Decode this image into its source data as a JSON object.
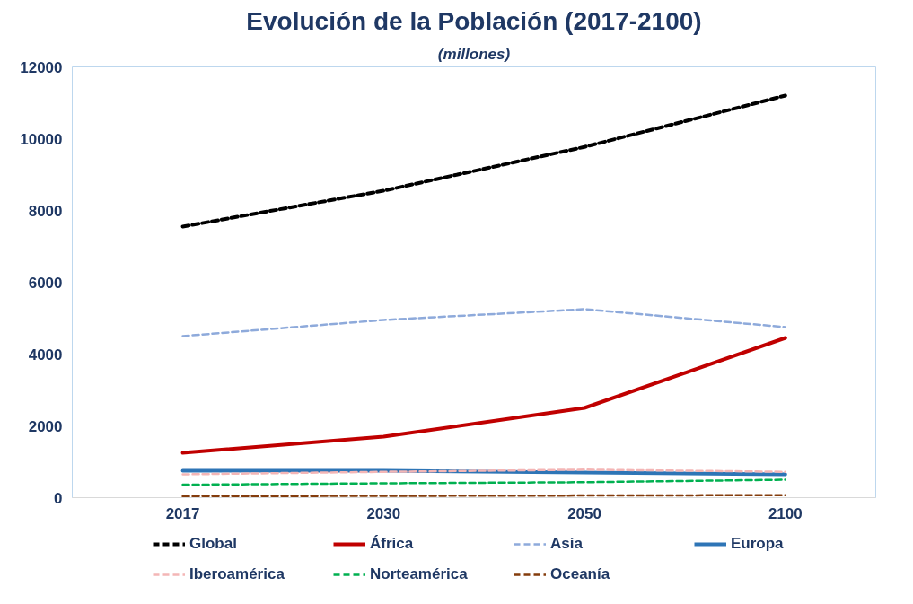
{
  "chart_data": {
    "type": "line",
    "title": "Evolución de la Población (2017-2100)",
    "subtitle": "(millones)",
    "categories": [
      "2017",
      "2030",
      "2050",
      "2100"
    ],
    "ylim": [
      0,
      12000
    ],
    "yticks": [
      0,
      2000,
      4000,
      6000,
      8000,
      10000,
      12000
    ],
    "grid": false,
    "legend": "bottom",
    "marker": "none",
    "series": [
      {
        "name": "Global",
        "color": "#000000",
        "line_style": "dashed",
        "values": [
          7550,
          8550,
          9770,
          11200
        ]
      },
      {
        "name": "África",
        "color": "#c00000",
        "line_style": "solid",
        "values": [
          1250,
          1700,
          2500,
          4450
        ]
      },
      {
        "name": "Asia",
        "color": "#8eaadb",
        "line_style": "dashed",
        "values": [
          4500,
          4950,
          5250,
          4750
        ]
      },
      {
        "name": "Europa",
        "color": "#2e75b6",
        "line_style": "solid",
        "values": [
          750,
          750,
          700,
          650
        ]
      },
      {
        "name": "Iberoamérica",
        "color": "#f4b6b6",
        "line_style": "dashed",
        "values": [
          650,
          720,
          780,
          720
        ]
      },
      {
        "name": "Norteamérica",
        "color": "#00b050",
        "line_style": "dashed",
        "values": [
          360,
          400,
          430,
          500
        ]
      },
      {
        "name": "Oceanía",
        "color": "#843c0c",
        "line_style": "dashed",
        "values": [
          40,
          50,
          60,
          70
        ]
      }
    ]
  }
}
